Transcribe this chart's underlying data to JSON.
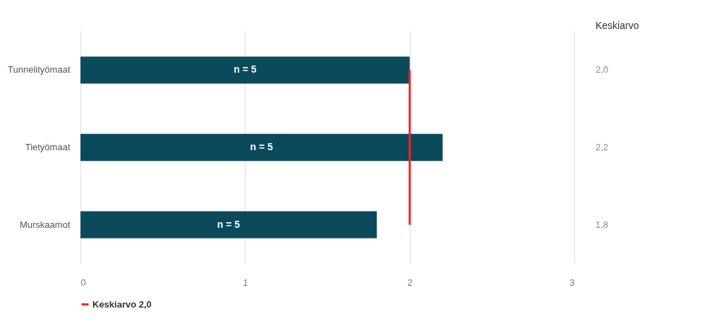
{
  "chart_data": {
    "type": "bar",
    "orientation": "horizontal",
    "categories": [
      "Tunnelityömaat",
      "Tietyömaat",
      "Murskaamot"
    ],
    "values": [
      2.0,
      2.2,
      1.8
    ],
    "color": "#0b4a5a",
    "xlim": [
      0,
      3
    ],
    "xticks": [
      0,
      1,
      2,
      3
    ],
    "grid": "x",
    "ref_lines": [
      {
        "axis": "x",
        "value": 2,
        "label": "Keskiarvo 2,0",
        "color": "#ff2020"
      }
    ],
    "legend": "bottom",
    "annotations": [
      "Keskiarvo",
      "2,0",
      "2,2",
      "1,8",
      "n = 5",
      "n = 5",
      "n = 5"
    ]
  }
}
